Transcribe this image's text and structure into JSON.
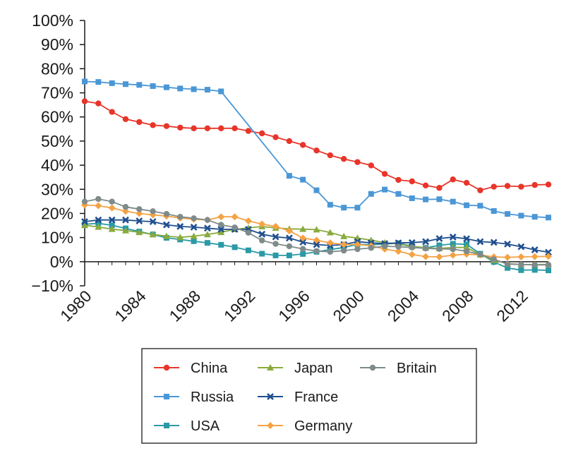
{
  "chart_data": {
    "type": "line",
    "title": "",
    "xlabel": "",
    "ylabel": "",
    "xlim": [
      1980,
      2014
    ],
    "ylim": [
      -10,
      100
    ],
    "x_ticks": [
      1980,
      1984,
      1988,
      1992,
      1996,
      2000,
      2004,
      2008,
      2012
    ],
    "x_tick_labels": [
      "1980",
      "1984",
      "1988",
      "1992",
      "1996",
      "2000",
      "2004",
      "2008",
      "2012"
    ],
    "y_ticks": [
      -10,
      0,
      10,
      20,
      30,
      40,
      50,
      60,
      70,
      80,
      90,
      100
    ],
    "y_tick_labels": [
      "−10%",
      "0%",
      "10%",
      "20%",
      "30%",
      "40%",
      "50%",
      "60%",
      "70%",
      "80%",
      "90%",
      "100%"
    ],
    "grid": false,
    "legend_position": "bottom-center",
    "x": [
      1980,
      1981,
      1982,
      1983,
      1984,
      1985,
      1986,
      1987,
      1988,
      1989,
      1990,
      1991,
      1992,
      1993,
      1994,
      1995,
      1996,
      1997,
      1998,
      1999,
      2000,
      2001,
      2002,
      2003,
      2004,
      2005,
      2006,
      2007,
      2008,
      2009,
      2010,
      2011,
      2012,
      2013,
      2014
    ],
    "series": [
      {
        "name": "China",
        "color": "#e8352a",
        "marker": "circle",
        "values": [
          66.5,
          65.6,
          62.1,
          59.1,
          57.9,
          56.6,
          56.2,
          55.6,
          55.3,
          55.3,
          55.3,
          55.3,
          54.2,
          53.2,
          51.6,
          50.0,
          48.4,
          46.1,
          44.1,
          42.6,
          41.3,
          39.9,
          36.4,
          33.9,
          33.3,
          31.6,
          30.6,
          34.1,
          32.7,
          29.6,
          31.1,
          31.4,
          31.1,
          31.8,
          32.0
        ]
      },
      {
        "name": "Russia",
        "color": "#4a97d6",
        "marker": "square",
        "values": [
          74.7,
          74.5,
          74.0,
          73.6,
          73.3,
          72.8,
          72.3,
          71.8,
          71.5,
          71.3,
          70.6,
          null,
          null,
          null,
          null,
          35.6,
          34.0,
          29.6,
          23.6,
          22.4,
          22.4,
          28.1,
          29.9,
          28.1,
          26.3,
          25.8,
          25.9,
          24.9,
          23.4,
          23.2,
          21.0,
          19.8,
          19.1,
          18.6,
          18.3
        ]
      },
      {
        "name": "USA",
        "color": "#2a9aa6",
        "marker": "square",
        "values": [
          15.5,
          15.9,
          15.1,
          13.8,
          12.5,
          11.3,
          9.9,
          9.2,
          8.5,
          7.8,
          7.0,
          6.0,
          4.7,
          3.3,
          2.6,
          2.6,
          3.2,
          4.1,
          5.0,
          5.9,
          7.2,
          7.0,
          7.3,
          7.7,
          6.4,
          5.7,
          6.8,
          7.4,
          7.2,
          3.3,
          -0.1,
          -2.6,
          -3.5,
          -3.4,
          -3.6
        ]
      },
      {
        "name": "Japan",
        "color": "#8aaa3e",
        "marker": "triangle",
        "values": [
          15.1,
          14.4,
          13.5,
          12.9,
          12.2,
          11.3,
          10.6,
          10.1,
          10.6,
          11.3,
          12.2,
          13.4,
          14.0,
          14.6,
          14.0,
          13.6,
          13.5,
          13.3,
          12.1,
          10.5,
          9.8,
          8.9,
          7.9,
          7.3,
          6.3,
          5.8,
          5.5,
          5.9,
          5.9,
          2.9,
          0.6,
          -0.8,
          -1.1,
          -1.2,
          -1.1
        ]
      },
      {
        "name": "France",
        "color": "#1f4f8e",
        "marker": "x",
        "values": [
          16.6,
          17.3,
          17.3,
          17.3,
          16.9,
          16.6,
          15.3,
          14.6,
          14.3,
          13.9,
          13.4,
          13.4,
          13.4,
          11.4,
          10.3,
          9.8,
          8.1,
          7.1,
          6.7,
          7.1,
          8.3,
          7.8,
          7.5,
          7.8,
          7.9,
          8.3,
          9.6,
          10.2,
          9.5,
          8.3,
          8.0,
          7.3,
          6.2,
          4.9,
          3.9
        ]
      },
      {
        "name": "Germany",
        "color": "#f5a244",
        "marker": "diamond",
        "values": [
          23.5,
          23.2,
          22.3,
          20.9,
          20.0,
          19.4,
          18.9,
          18.1,
          17.6,
          17.3,
          18.6,
          18.6,
          16.9,
          15.6,
          14.6,
          12.8,
          9.8,
          8.9,
          7.8,
          7.1,
          7.1,
          6.6,
          5.2,
          4.3,
          3.0,
          2.1,
          2.0,
          2.7,
          3.1,
          2.8,
          2.0,
          1.8,
          2.0,
          2.1,
          2.2
        ]
      },
      {
        "name": "Britain",
        "color": "#7f8b8b",
        "marker": "circle",
        "values": [
          24.9,
          26.0,
          24.9,
          22.7,
          21.8,
          20.9,
          19.8,
          18.6,
          18.0,
          17.3,
          15.3,
          14.2,
          12.0,
          8.8,
          7.4,
          6.4,
          5.3,
          4.4,
          4.1,
          4.6,
          5.2,
          5.7,
          6.4,
          6.2,
          5.9,
          5.5,
          5.3,
          5.2,
          4.3,
          3.0,
          1.0,
          -1.0,
          -1.2,
          -1.3,
          -1.3
        ]
      }
    ]
  }
}
